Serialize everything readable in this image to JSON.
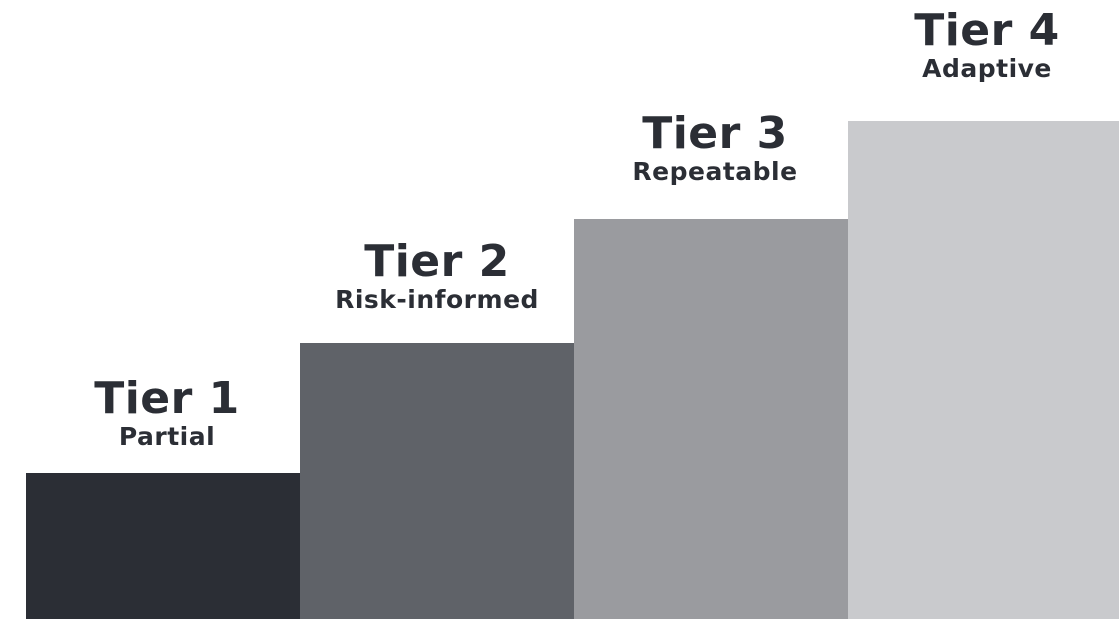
{
  "tiers": [
    {
      "title": "Tier 1",
      "name": "Partial",
      "color": "#2b2e35",
      "level": 1
    },
    {
      "title": "Tier 2",
      "name": "Risk-informed",
      "color": "#5f6268",
      "level": 2
    },
    {
      "title": "Tier 3",
      "name": "Repeatable",
      "color": "#9a9b9f",
      "level": 3
    },
    {
      "title": "Tier 4",
      "name": "Adaptive",
      "color": "#c9cacd",
      "level": 4
    }
  ]
}
